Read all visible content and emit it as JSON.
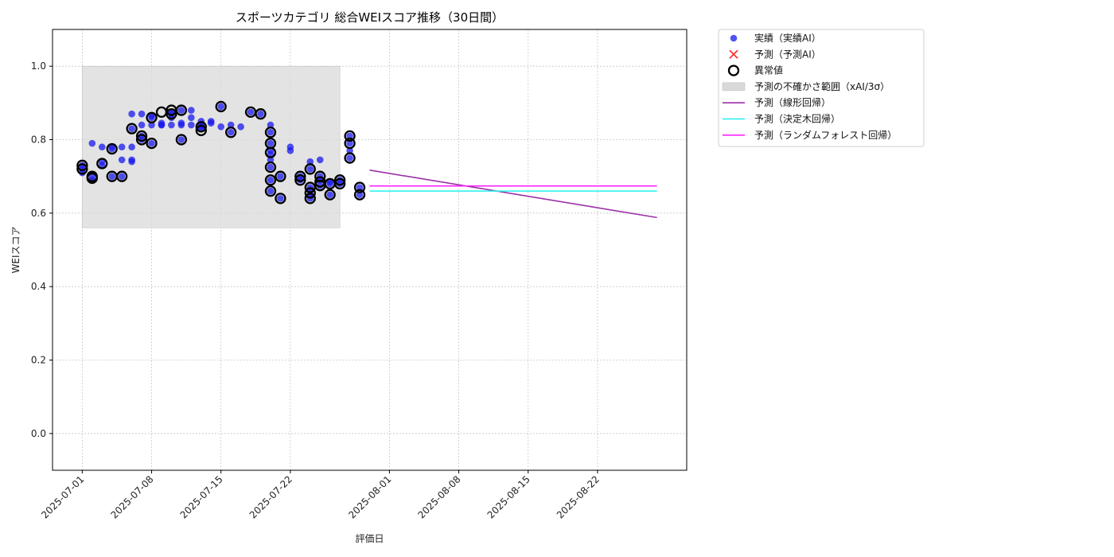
{
  "chart_data": {
    "type": "scatter",
    "title": "スポーツカテゴリ 総合WEIスコア推移（30日間）",
    "xlabel": "評価日",
    "ylabel": "WEIスコア",
    "x_tick_labels": [
      "2025-07-01",
      "2025-07-08",
      "2025-07-15",
      "2025-07-22",
      "2025-08-01",
      "2025-08-08",
      "2025-08-15",
      "2025-08-22"
    ],
    "x_range": [
      "2025-06-28",
      "2025-08-31"
    ],
    "y_ticks": [
      "0.0",
      "0.2",
      "0.4",
      "0.6",
      "0.8",
      "1.0"
    ],
    "ylim": [
      -0.1,
      1.1
    ],
    "grid": true,
    "legend_position": "outside-top-right",
    "colors": {
      "actual": "#1a1aee",
      "predicted": "#ff3333",
      "anomaly": "#000000",
      "uncertainty": "#d9d9d9",
      "linear": "#9b30a8",
      "tree": "#22f0f0",
      "forest": "#ff22ff"
    },
    "legend": [
      {
        "key": "actual",
        "label": "実績（実績AI）"
      },
      {
        "key": "predicted",
        "label": "予測（予測AI）"
      },
      {
        "key": "anomaly",
        "label": "異常値"
      },
      {
        "key": "uncertainty",
        "label": "予測の不確かさ範囲（xAI/3σ）"
      },
      {
        "key": "linear",
        "label": "予測（線形回帰）"
      },
      {
        "key": "tree",
        "label": "予測（決定木回帰）"
      },
      {
        "key": "forest",
        "label": "予測（ランダムフォレスト回帰）"
      }
    ],
    "uncertainty_band": {
      "x_start": "2025-07-01",
      "x_end": "2025-07-27",
      "y_low": 0.56,
      "y_high": 1.0
    },
    "series": [
      {
        "name": "実績（実績AI）",
        "kind": "scatter",
        "points": [
          [
            "2025-07-01",
            0.72
          ],
          [
            "2025-07-01",
            0.73
          ],
          [
            "2025-07-01",
            0.71
          ],
          [
            "2025-07-02",
            0.7
          ],
          [
            "2025-07-02",
            0.69
          ],
          [
            "2025-07-02",
            0.79
          ],
          [
            "2025-07-03",
            0.73
          ],
          [
            "2025-07-03",
            0.74
          ],
          [
            "2025-07-03",
            0.78
          ],
          [
            "2025-07-04",
            0.7
          ],
          [
            "2025-07-04",
            0.78
          ],
          [
            "2025-07-04",
            0.775
          ],
          [
            "2025-07-05",
            0.78
          ],
          [
            "2025-07-05",
            0.7
          ],
          [
            "2025-07-05",
            0.745
          ],
          [
            "2025-07-06",
            0.74
          ],
          [
            "2025-07-06",
            0.745
          ],
          [
            "2025-07-06",
            0.78
          ],
          [
            "2025-07-06",
            0.83
          ],
          [
            "2025-07-06",
            0.87
          ],
          [
            "2025-07-07",
            0.87
          ],
          [
            "2025-07-07",
            0.84
          ],
          [
            "2025-07-07",
            0.81
          ],
          [
            "2025-07-07",
            0.8
          ],
          [
            "2025-07-08",
            0.79
          ],
          [
            "2025-07-08",
            0.84
          ],
          [
            "2025-07-08",
            0.865
          ],
          [
            "2025-07-08",
            0.86
          ],
          [
            "2025-07-09",
            0.84
          ],
          [
            "2025-07-09",
            0.84
          ],
          [
            "2025-07-09",
            0.845
          ],
          [
            "2025-07-10",
            0.875
          ],
          [
            "2025-07-10",
            0.87
          ],
          [
            "2025-07-10",
            0.84
          ],
          [
            "2025-07-10",
            0.86
          ],
          [
            "2025-07-11",
            0.88
          ],
          [
            "2025-07-11",
            0.84
          ],
          [
            "2025-07-11",
            0.8
          ],
          [
            "2025-07-11",
            0.845
          ],
          [
            "2025-07-12",
            0.88
          ],
          [
            "2025-07-12",
            0.86
          ],
          [
            "2025-07-12",
            0.84
          ],
          [
            "2025-07-13",
            0.85
          ],
          [
            "2025-07-13",
            0.83
          ],
          [
            "2025-07-13",
            0.84
          ],
          [
            "2025-07-13",
            0.835
          ],
          [
            "2025-07-14",
            0.845
          ],
          [
            "2025-07-14",
            0.85
          ],
          [
            "2025-07-15",
            0.89
          ],
          [
            "2025-07-15",
            0.835
          ],
          [
            "2025-07-16",
            0.82
          ],
          [
            "2025-07-16",
            0.84
          ],
          [
            "2025-07-17",
            0.835
          ],
          [
            "2025-07-18",
            0.875
          ],
          [
            "2025-07-19",
            0.87
          ],
          [
            "2025-07-20",
            0.84
          ],
          [
            "2025-07-20",
            0.82
          ],
          [
            "2025-07-20",
            0.79
          ],
          [
            "2025-07-20",
            0.77
          ],
          [
            "2025-07-20",
            0.76
          ],
          [
            "2025-07-20",
            0.725
          ],
          [
            "2025-07-20",
            0.69
          ],
          [
            "2025-07-20",
            0.66
          ],
          [
            "2025-07-20",
            0.745
          ],
          [
            "2025-07-21",
            0.7
          ],
          [
            "2025-07-21",
            0.64
          ],
          [
            "2025-07-22",
            0.78
          ],
          [
            "2025-07-22",
            0.77
          ],
          [
            "2025-07-23",
            0.7
          ],
          [
            "2025-07-23",
            0.69
          ],
          [
            "2025-07-24",
            0.72
          ],
          [
            "2025-07-24",
            0.74
          ],
          [
            "2025-07-24",
            0.67
          ],
          [
            "2025-07-24",
            0.66
          ],
          [
            "2025-07-24",
            0.65
          ],
          [
            "2025-07-24",
            0.64
          ],
          [
            "2025-07-25",
            0.745
          ],
          [
            "2025-07-25",
            0.7
          ],
          [
            "2025-07-25",
            0.69
          ],
          [
            "2025-07-25",
            0.675
          ],
          [
            "2025-07-26",
            0.65
          ],
          [
            "2025-07-26",
            0.68
          ],
          [
            "2025-07-26",
            0.685
          ],
          [
            "2025-07-27",
            0.69
          ],
          [
            "2025-07-27",
            0.68
          ],
          [
            "2025-07-28",
            0.81
          ],
          [
            "2025-07-28",
            0.79
          ],
          [
            "2025-07-28",
            0.77
          ],
          [
            "2025-07-28",
            0.75
          ],
          [
            "2025-07-29",
            0.67
          ],
          [
            "2025-07-29",
            0.65
          ]
        ]
      },
      {
        "name": "異常値",
        "kind": "scatter",
        "points": [
          [
            "2025-07-01",
            0.72
          ],
          [
            "2025-07-01",
            0.73
          ],
          [
            "2025-07-02",
            0.7
          ],
          [
            "2025-07-02",
            0.695
          ],
          [
            "2025-07-03",
            0.735
          ],
          [
            "2025-07-04",
            0.7
          ],
          [
            "2025-07-04",
            0.775
          ],
          [
            "2025-07-05",
            0.7
          ],
          [
            "2025-07-06",
            0.83
          ],
          [
            "2025-07-07",
            0.8
          ],
          [
            "2025-07-07",
            0.81
          ],
          [
            "2025-07-08",
            0.79
          ],
          [
            "2025-07-08",
            0.86
          ],
          [
            "2025-07-09",
            0.875
          ],
          [
            "2025-07-10",
            0.87
          ],
          [
            "2025-07-10",
            0.88
          ],
          [
            "2025-07-11",
            0.8
          ],
          [
            "2025-07-11",
            0.88
          ],
          [
            "2025-07-13",
            0.835
          ],
          [
            "2025-07-13",
            0.825
          ],
          [
            "2025-07-15",
            0.89
          ],
          [
            "2025-07-16",
            0.82
          ],
          [
            "2025-07-18",
            0.875
          ],
          [
            "2025-07-19",
            0.87
          ],
          [
            "2025-07-20",
            0.82
          ],
          [
            "2025-07-20",
            0.79
          ],
          [
            "2025-07-20",
            0.765
          ],
          [
            "2025-07-20",
            0.725
          ],
          [
            "2025-07-20",
            0.69
          ],
          [
            "2025-07-20",
            0.66
          ],
          [
            "2025-07-21",
            0.7
          ],
          [
            "2025-07-21",
            0.64
          ],
          [
            "2025-07-23",
            0.7
          ],
          [
            "2025-07-23",
            0.69
          ],
          [
            "2025-07-24",
            0.72
          ],
          [
            "2025-07-24",
            0.67
          ],
          [
            "2025-07-24",
            0.655
          ],
          [
            "2025-07-24",
            0.64
          ],
          [
            "2025-07-25",
            0.7
          ],
          [
            "2025-07-25",
            0.685
          ],
          [
            "2025-07-25",
            0.675
          ],
          [
            "2025-07-26",
            0.65
          ],
          [
            "2025-07-26",
            0.68
          ],
          [
            "2025-07-27",
            0.69
          ],
          [
            "2025-07-27",
            0.68
          ],
          [
            "2025-07-28",
            0.81
          ],
          [
            "2025-07-28",
            0.79
          ],
          [
            "2025-07-28",
            0.75
          ],
          [
            "2025-07-29",
            0.67
          ],
          [
            "2025-07-29",
            0.65
          ]
        ]
      },
      {
        "name": "予測（線形回帰）",
        "kind": "line",
        "points": [
          [
            "2025-07-30",
            0.717
          ],
          [
            "2025-08-28",
            0.588
          ]
        ]
      },
      {
        "name": "予測（決定木回帰）",
        "kind": "line",
        "points": [
          [
            "2025-07-30",
            0.66
          ],
          [
            "2025-08-28",
            0.66
          ]
        ]
      },
      {
        "name": "予測（ランダムフォレスト回帰）",
        "kind": "line",
        "points": [
          [
            "2025-07-30",
            0.674
          ],
          [
            "2025-08-28",
            0.674
          ]
        ]
      }
    ]
  }
}
